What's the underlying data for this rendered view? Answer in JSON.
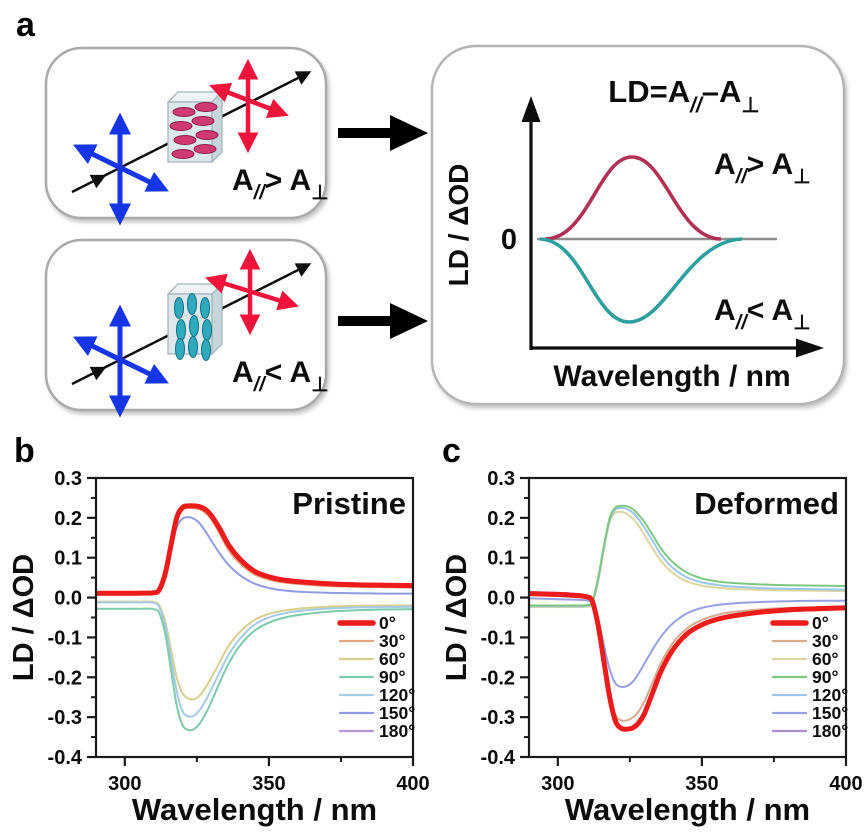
{
  "figure": {
    "panel_a_label": "a",
    "panel_b_label": "b",
    "panel_c_label": "c"
  },
  "panel_a": {
    "colors": {
      "blue_arrow": "#1536e8",
      "red_arrow": "#f0143c",
      "black": "#0d0d0d",
      "box_border": "#aaaaaa",
      "slab_front": "#dce8eb",
      "slab_top": "#eef3f5",
      "slab_side": "#c7d6da",
      "disc_pink": "#cf3a72",
      "disc_pink_edge": "#8f1d4a",
      "disc_teal": "#2fa9bd",
      "disc_teal_edge": "#117086",
      "zero_line": "#8f8f8f",
      "positive_curve": "#b13055",
      "negative_curve": "#2d9fa0"
    },
    "box_top_formula": {
      "base1": "A",
      "sub1": "//",
      "base2": "> A",
      "sub2": "⊥"
    },
    "box_bottom_formula": {
      "base1": "A",
      "sub1": "//",
      "base2": "< A",
      "sub2": "⊥"
    },
    "result_box": {
      "title": {
        "base1": "LD=A",
        "sub1": "//",
        "base2": "–A",
        "sub2": "⊥"
      },
      "ylabel": "LD / ΔOD",
      "zero_label": "0",
      "xlabel": "Wavelength / nm",
      "upper_label": {
        "base1": "A",
        "sub1": "//",
        "base2": "> A",
        "sub2": "⊥"
      },
      "lower_label": {
        "base1": "A",
        "sub1": "//",
        "base2": "< A",
        "sub2": "⊥"
      }
    }
  },
  "chart_data": [
    {
      "panel": "b",
      "type": "line",
      "title": "Pristine",
      "xlabel": "Wavelength / nm",
      "ylabel": "LD / ΔOD",
      "xlim": [
        290,
        400
      ],
      "ylim": [
        -0.4,
        0.3
      ],
      "xtick_values": [
        300,
        350,
        400
      ],
      "xtick_labels": [
        "300",
        "350",
        "400"
      ],
      "xtick_minor": [
        325,
        375
      ],
      "ytick_values": [
        0.3,
        0.2,
        0.1,
        0.0,
        -0.1,
        -0.2,
        -0.3,
        -0.4
      ],
      "ytick_labels": [
        "0.3",
        "0.2",
        "0.1",
        "0.0",
        "-0.1",
        "-0.2",
        "-0.3",
        "-0.4"
      ],
      "ytick_minor": [
        0.25,
        0.15,
        0.05,
        -0.05,
        -0.15,
        -0.25,
        -0.35
      ],
      "grid": false,
      "legend_position": "lower right",
      "draw_order": [
        6,
        1,
        5,
        2,
        4,
        3,
        0
      ],
      "x": [
        290,
        295,
        300,
        305,
        310,
        312,
        314,
        316,
        318,
        320,
        322,
        324,
        326,
        328,
        330,
        333,
        336,
        340,
        345,
        350,
        355,
        360,
        370,
        380,
        390,
        400
      ],
      "series": [
        {
          "name": "0°",
          "color": "#ee1b1b",
          "width": 5,
          "values": [
            0.011,
            0.011,
            0.011,
            0.011,
            0.012,
            0.02,
            0.06,
            0.13,
            0.2,
            0.226,
            0.23,
            0.23,
            0.228,
            0.221,
            0.206,
            0.172,
            0.132,
            0.096,
            0.066,
            0.052,
            0.044,
            0.04,
            0.035,
            0.032,
            0.031,
            0.03
          ]
        },
        {
          "name": "30°",
          "color": "#e2a57f",
          "width": 2,
          "values": [
            0.01,
            0.01,
            0.01,
            0.01,
            0.011,
            0.018,
            0.055,
            0.122,
            0.192,
            0.219,
            0.225,
            0.224,
            0.221,
            0.212,
            0.196,
            0.159,
            0.119,
            0.085,
            0.058,
            0.045,
            0.038,
            0.034,
            0.029,
            0.027,
            0.026,
            0.025
          ]
        },
        {
          "name": "60°",
          "color": "#d9ce8d",
          "width": 2,
          "values": [
            -0.01,
            -0.01,
            -0.01,
            -0.01,
            -0.011,
            -0.02,
            -0.06,
            -0.13,
            -0.2,
            -0.24,
            -0.253,
            -0.255,
            -0.246,
            -0.226,
            -0.201,
            -0.161,
            -0.121,
            -0.086,
            -0.056,
            -0.041,
            -0.033,
            -0.028,
            -0.023,
            -0.021,
            -0.02,
            -0.02
          ]
        },
        {
          "name": "90°",
          "color": "#7ccbaa",
          "width": 2,
          "values": [
            -0.028,
            -0.028,
            -0.028,
            -0.028,
            -0.029,
            -0.04,
            -0.09,
            -0.18,
            -0.27,
            -0.32,
            -0.332,
            -0.33,
            -0.316,
            -0.292,
            -0.262,
            -0.212,
            -0.166,
            -0.12,
            -0.083,
            -0.063,
            -0.051,
            -0.044,
            -0.036,
            -0.032,
            -0.03,
            -0.029
          ]
        },
        {
          "name": "120°",
          "color": "#a3cbe8",
          "width": 2,
          "values": [
            -0.012,
            -0.012,
            -0.012,
            -0.012,
            -0.013,
            -0.025,
            -0.07,
            -0.15,
            -0.235,
            -0.285,
            -0.298,
            -0.296,
            -0.282,
            -0.259,
            -0.231,
            -0.186,
            -0.143,
            -0.103,
            -0.068,
            -0.05,
            -0.04,
            -0.034,
            -0.028,
            -0.025,
            -0.024,
            -0.023
          ]
        },
        {
          "name": "150°",
          "color": "#8f9ce4",
          "width": 2,
          "values": [
            0.008,
            0.008,
            0.008,
            0.008,
            0.009,
            0.015,
            0.05,
            0.115,
            0.176,
            0.198,
            0.202,
            0.198,
            0.186,
            0.166,
            0.143,
            0.11,
            0.082,
            0.056,
            0.035,
            0.024,
            0.018,
            0.015,
            0.012,
            0.011,
            0.01,
            0.01
          ]
        },
        {
          "name": "180°",
          "color": "#b793d6",
          "width": 2,
          "values": [
            0.008,
            0.008,
            0.008,
            0.008,
            0.009,
            0.017,
            0.057,
            0.127,
            0.197,
            0.223,
            0.227,
            0.227,
            0.225,
            0.218,
            0.203,
            0.169,
            0.129,
            0.093,
            0.063,
            0.049,
            0.041,
            0.037,
            0.032,
            0.029,
            0.028,
            0.027
          ]
        }
      ]
    },
    {
      "panel": "c",
      "type": "line",
      "title": "Deformed",
      "xlabel": "Wavelength / nm",
      "ylabel": "LD / ΔOD",
      "xlim": [
        290,
        400
      ],
      "ylim": [
        -0.4,
        0.3
      ],
      "xtick_values": [
        300,
        350,
        400
      ],
      "xtick_labels": [
        "300",
        "350",
        "400"
      ],
      "xtick_minor": [
        325,
        375
      ],
      "ytick_values": [
        0.3,
        0.2,
        0.1,
        0.0,
        -0.1,
        -0.2,
        -0.3,
        -0.4
      ],
      "ytick_labels": [
        "0.3",
        "0.2",
        "0.1",
        "0.0",
        "-0.1",
        "-0.2",
        "-0.3",
        "-0.4"
      ],
      "ytick_minor": [
        0.25,
        0.15,
        0.05,
        -0.05,
        -0.15,
        -0.25,
        -0.35
      ],
      "grid": false,
      "legend_position": "lower right",
      "draw_order": [
        6,
        1,
        5,
        2,
        4,
        3,
        0
      ],
      "x": [
        290,
        295,
        300,
        305,
        310,
        312,
        314,
        316,
        318,
        320,
        322,
        324,
        326,
        328,
        330,
        333,
        336,
        340,
        345,
        350,
        355,
        360,
        370,
        380,
        390,
        400
      ],
      "series": [
        {
          "name": "0°",
          "color": "#ee1b1b",
          "width": 5,
          "values": [
            0.01,
            0.009,
            0.008,
            0.006,
            0.002,
            -0.01,
            -0.07,
            -0.16,
            -0.25,
            -0.31,
            -0.328,
            -0.33,
            -0.327,
            -0.315,
            -0.292,
            -0.237,
            -0.182,
            -0.13,
            -0.09,
            -0.068,
            -0.055,
            -0.047,
            -0.037,
            -0.031,
            -0.028,
            -0.026
          ]
        },
        {
          "name": "30°",
          "color": "#d8a98c",
          "width": 2,
          "values": [
            0.006,
            0.005,
            0.004,
            0.002,
            -0.002,
            -0.015,
            -0.07,
            -0.155,
            -0.24,
            -0.294,
            -0.308,
            -0.308,
            -0.301,
            -0.286,
            -0.261,
            -0.211,
            -0.161,
            -0.113,
            -0.076,
            -0.056,
            -0.044,
            -0.037,
            -0.03,
            -0.026,
            -0.024,
            -0.022
          ]
        },
        {
          "name": "60°",
          "color": "#ddd6a0",
          "width": 2,
          "values": [
            -0.024,
            -0.024,
            -0.024,
            -0.024,
            -0.023,
            -0.014,
            0.04,
            0.12,
            0.19,
            0.213,
            0.215,
            0.21,
            0.198,
            0.181,
            0.158,
            0.122,
            0.09,
            0.061,
            0.04,
            0.03,
            0.025,
            0.022,
            0.019,
            0.018,
            0.017,
            0.016
          ]
        },
        {
          "name": "90°",
          "color": "#7dc87e",
          "width": 2,
          "values": [
            -0.02,
            -0.02,
            -0.02,
            -0.02,
            -0.019,
            -0.01,
            0.05,
            0.13,
            0.2,
            0.226,
            0.23,
            0.229,
            0.222,
            0.208,
            0.19,
            0.156,
            0.121,
            0.088,
            0.062,
            0.048,
            0.041,
            0.037,
            0.033,
            0.031,
            0.03,
            0.029
          ]
        },
        {
          "name": "120°",
          "color": "#9cc7e8",
          "width": 2,
          "values": [
            -0.022,
            -0.022,
            -0.022,
            -0.022,
            -0.021,
            -0.012,
            0.045,
            0.125,
            0.195,
            0.221,
            0.225,
            0.222,
            0.213,
            0.197,
            0.176,
            0.141,
            0.106,
            0.074,
            0.05,
            0.038,
            0.032,
            0.028,
            0.024,
            0.022,
            0.021,
            0.02
          ]
        },
        {
          "name": "150°",
          "color": "#95a0e4",
          "width": 2,
          "values": [
            -0.002,
            -0.003,
            -0.004,
            -0.005,
            -0.007,
            -0.015,
            -0.055,
            -0.12,
            -0.18,
            -0.215,
            -0.224,
            -0.222,
            -0.211,
            -0.191,
            -0.166,
            -0.129,
            -0.096,
            -0.064,
            -0.039,
            -0.026,
            -0.019,
            -0.015,
            -0.011,
            -0.009,
            -0.008,
            -0.008
          ]
        },
        {
          "name": "180°",
          "color": "#ad8bd0",
          "width": 2,
          "values": [
            0.014,
            0.013,
            0.012,
            0.01,
            0.006,
            -0.008,
            -0.068,
            -0.158,
            -0.248,
            -0.308,
            -0.326,
            -0.328,
            -0.325,
            -0.313,
            -0.29,
            -0.235,
            -0.18,
            -0.128,
            -0.088,
            -0.066,
            -0.053,
            -0.045,
            -0.035,
            -0.029,
            -0.026,
            -0.024
          ]
        }
      ]
    }
  ]
}
